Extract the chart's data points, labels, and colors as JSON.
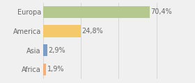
{
  "categories": [
    "Europa",
    "America",
    "Asia",
    "Africa"
  ],
  "values": [
    70.4,
    24.8,
    2.9,
    1.9
  ],
  "labels": [
    "70,4%",
    "24,8%",
    "2,9%",
    "1,9%"
  ],
  "bar_colors": [
    "#b5c98e",
    "#f5c96a",
    "#7b9ec7",
    "#f5b07a"
  ],
  "background_color": "#f0f0f0",
  "xlim": [
    0,
    85
  ],
  "bar_height": 0.62,
  "label_fontsize": 7.0,
  "category_fontsize": 7.0
}
